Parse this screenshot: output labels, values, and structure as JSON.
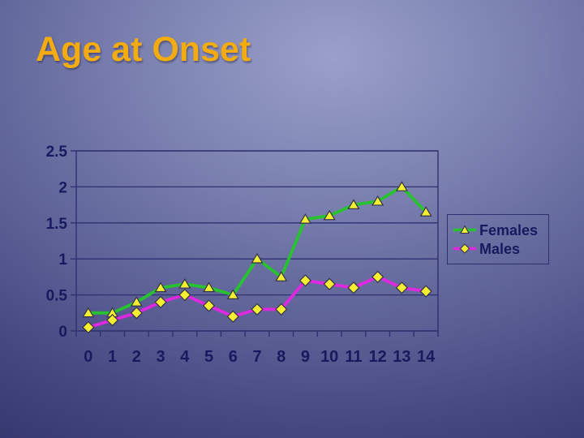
{
  "slide": {
    "title": "Age at Onset"
  },
  "colors": {
    "title_text": "#f2ab10",
    "axis_text": "#171a5e",
    "axis_line": "#2e3070",
    "gridline": "#2e3070",
    "marker_fill": "#f5ee31",
    "marker_outline": "#33334a",
    "legend_border": "#2e3070",
    "background_gradient": [
      "#9aa0ca",
      "#8288b5",
      "#63689c",
      "#454880",
      "#2c2e63"
    ]
  },
  "chart_data": {
    "type": "line",
    "title": "Age at Onset",
    "categories": [
      0,
      1,
      2,
      3,
      4,
      5,
      6,
      7,
      8,
      9,
      10,
      11,
      12,
      13,
      14
    ],
    "series": [
      {
        "name": "Females",
        "marker": "triangle",
        "color": "#27c32f",
        "values": [
          0.25,
          0.25,
          0.4,
          0.6,
          0.65,
          0.6,
          0.5,
          1.0,
          0.75,
          1.55,
          1.6,
          1.75,
          1.8,
          2.0,
          1.65
        ]
      },
      {
        "name": "Males",
        "marker": "diamond",
        "color": "#e028e0",
        "values": [
          0.05,
          0.15,
          0.25,
          0.4,
          0.5,
          0.35,
          0.2,
          0.3,
          0.3,
          0.7,
          0.65,
          0.6,
          0.75,
          0.6,
          0.55
        ]
      }
    ],
    "xlabel": "",
    "ylabel": "",
    "ylim": [
      0,
      2.5
    ],
    "yticks": [
      0,
      0.5,
      1,
      1.5,
      2,
      2.5
    ],
    "ytick_labels": [
      "0",
      "0.5",
      "1",
      "1.5",
      "2",
      "2.5"
    ],
    "xtick_labels": [
      "0",
      "1",
      "2",
      "3",
      "4",
      "5",
      "6",
      "7",
      "8",
      "9",
      "10",
      "11",
      "12",
      "13",
      "14"
    ],
    "grid": true,
    "legend_position": "right"
  }
}
